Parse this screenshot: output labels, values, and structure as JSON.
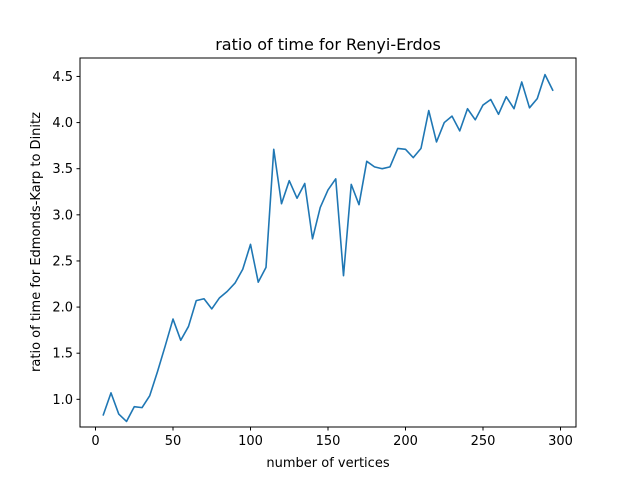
{
  "chart_data": {
    "type": "line",
    "title": "ratio of time for Renyi-Erdos",
    "xlabel": "number of vertices",
    "ylabel": "ratio of time for Edmonds-Karp to Dinitz",
    "xlim": [
      -10,
      310
    ],
    "ylim": [
      0.7,
      4.7
    ],
    "xticks": [
      0,
      50,
      100,
      150,
      200,
      250,
      300
    ],
    "yticks": [
      1.0,
      1.5,
      2.0,
      2.5,
      3.0,
      3.5,
      4.0,
      4.5
    ],
    "grid": false,
    "series": [
      {
        "color": "#1f77b4",
        "x": [
          5,
          10,
          15,
          20,
          25,
          30,
          35,
          40,
          45,
          50,
          55,
          60,
          65,
          70,
          75,
          80,
          85,
          90,
          95,
          100,
          105,
          110,
          115,
          120,
          125,
          130,
          135,
          140,
          145,
          150,
          155,
          160,
          165,
          170,
          175,
          180,
          185,
          190,
          195,
          200,
          205,
          210,
          215,
          220,
          225,
          230,
          235,
          240,
          245,
          250,
          255,
          260,
          265,
          270,
          275,
          280,
          285,
          290,
          295
        ],
        "y": [
          0.83,
          1.07,
          0.84,
          0.76,
          0.92,
          0.91,
          1.04,
          1.3,
          1.58,
          1.87,
          1.64,
          1.79,
          2.07,
          2.09,
          1.98,
          2.1,
          2.17,
          2.26,
          2.41,
          2.68,
          2.27,
          2.43,
          3.71,
          3.12,
          3.37,
          3.18,
          3.34,
          2.74,
          3.08,
          3.27,
          3.39,
          2.34,
          3.33,
          3.11,
          3.58,
          3.52,
          3.5,
          3.52,
          3.72,
          3.71,
          3.62,
          3.72,
          4.13,
          3.79,
          4.0,
          4.07,
          3.91,
          4.15,
          4.03,
          4.19,
          4.25,
          4.09,
          4.28,
          4.15,
          4.44,
          4.16,
          4.26,
          4.52,
          4.35
        ]
      }
    ]
  }
}
